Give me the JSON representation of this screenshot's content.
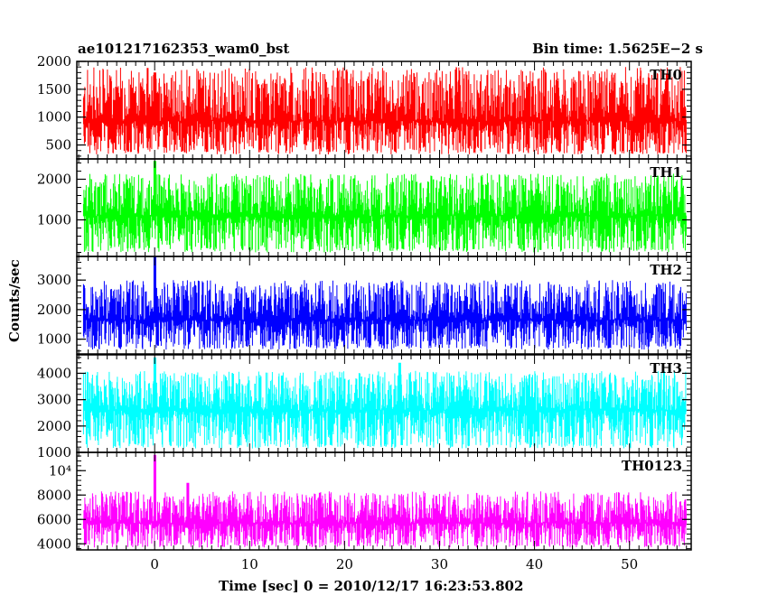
{
  "header": {
    "title": "ae101217162353_wam0_bst",
    "bin_time": "Bin time: 1.5625E−2 s"
  },
  "chart_data": {
    "type": "line",
    "xlabel": "Time [sec] 0 = 2010/12/17 16:23:53.802",
    "ylabel": "Counts/sec",
    "xlim": [
      -8.2,
      56.5
    ],
    "x_ticks": [
      0,
      10,
      20,
      30,
      40,
      50
    ],
    "data_x_range": [
      -7.5,
      56
    ],
    "panels": [
      {
        "name": "TH0",
        "color": "#ff0000",
        "ylim": [
          250,
          2000
        ],
        "y_ticks": [
          500,
          1000,
          1500,
          2000
        ],
        "y_tick_labels": [
          "500",
          "1000",
          "1500",
          "2000"
        ],
        "baseline": 930,
        "lower_envelope": 330,
        "upper_envelope": 1900,
        "peaks": [
          {
            "x": 0,
            "y": 1800
          }
        ]
      },
      {
        "name": "TH1",
        "color": "#00ff00",
        "ylim": [
          100,
          2500
        ],
        "y_ticks": [
          1000,
          2000
        ],
        "y_tick_labels": [
          "1000",
          "2000"
        ],
        "baseline": 1100,
        "lower_envelope": 200,
        "upper_envelope": 2150,
        "peaks": [
          {
            "x": 0,
            "y": 2450
          }
        ]
      },
      {
        "name": "TH2",
        "color": "#0000ff",
        "ylim": [
          500,
          3800
        ],
        "y_ticks": [
          1000,
          2000,
          3000
        ],
        "y_tick_labels": [
          "1000",
          "2000",
          "3000"
        ],
        "baseline": 1650,
        "lower_envelope": 650,
        "upper_envelope": 3000,
        "peaks": [
          {
            "x": 0,
            "y": 3800
          }
        ]
      },
      {
        "name": "TH3",
        "color": "#00ffff",
        "ylim": [
          1000,
          4700
        ],
        "y_ticks": [
          1000,
          2000,
          3000,
          4000
        ],
        "y_tick_labels": [
          "1000",
          "2000",
          "3000",
          "4000"
        ],
        "baseline": 2600,
        "lower_envelope": 1150,
        "upper_envelope": 4100,
        "peaks": [
          {
            "x": 0,
            "y": 4600
          },
          {
            "x": 25.8,
            "y": 4400
          }
        ]
      },
      {
        "name": "TH0123",
        "color": "#ff00ff",
        "ylim": [
          3500,
          11500
        ],
        "y_ticks": [
          4000,
          6000,
          8000,
          10000
        ],
        "y_tick_labels": [
          "4000",
          "6000",
          "8000",
          "10⁴"
        ],
        "baseline": 5700,
        "lower_envelope": 3700,
        "upper_envelope": 8300,
        "peaks": [
          {
            "x": 0,
            "y": 11300
          },
          {
            "x": 3.5,
            "y": 9000
          }
        ]
      }
    ]
  }
}
